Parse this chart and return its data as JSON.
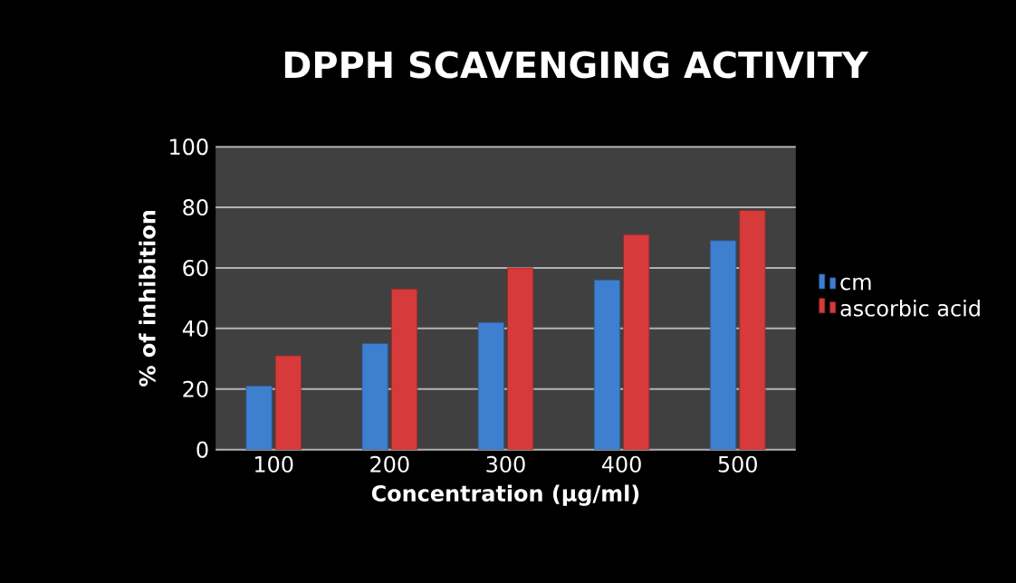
{
  "chart_data": {
    "type": "bar",
    "title": "DPPH SCAVENGING ACTIVITY",
    "xlabel": "Concentration (µg/ml)",
    "ylabel": "% of inhibition",
    "categories": [
      "100",
      "200",
      "300",
      "400",
      "500"
    ],
    "series": [
      {
        "name": "cm",
        "color": "#3f7fd0",
        "values": [
          21,
          35,
          42,
          56,
          69
        ]
      },
      {
        "name": "ascorbic acid",
        "color": "#d63a3a",
        "values": [
          31,
          53,
          60,
          71,
          79
        ]
      }
    ],
    "ylim": [
      0,
      100
    ],
    "yticks": [
      0,
      20,
      40,
      60,
      80,
      100
    ],
    "grid": "y",
    "legend": "right"
  }
}
